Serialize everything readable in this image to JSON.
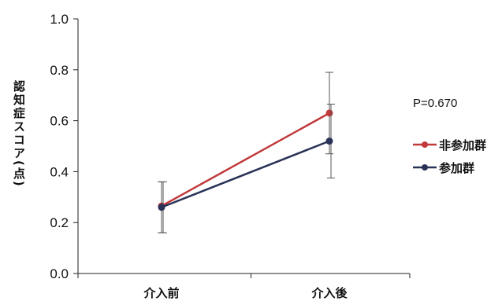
{
  "chart_data": {
    "type": "line",
    "title": "",
    "xlabel": "",
    "ylabel": "認知症スコア(点)",
    "categories": [
      "介入前",
      "介入後"
    ],
    "ylim": [
      0.0,
      1.0
    ],
    "yticks": [
      "0.0",
      "0.2",
      "0.4",
      "0.6",
      "0.8",
      "1.0"
    ],
    "grid": false,
    "legend_position": "right",
    "annotation": "P=0.670",
    "series": [
      {
        "name": "非参加群",
        "color": "#c0393b",
        "values": [
          0.265,
          0.63
        ],
        "error_low": [
          0.16,
          0.47
        ],
        "error_high": [
          0.36,
          0.79
        ]
      },
      {
        "name": "参加群",
        "color": "#2a3357",
        "values": [
          0.26,
          0.52
        ],
        "error_low": [
          0.16,
          0.375
        ],
        "error_high": [
          0.36,
          0.665
        ]
      }
    ]
  }
}
